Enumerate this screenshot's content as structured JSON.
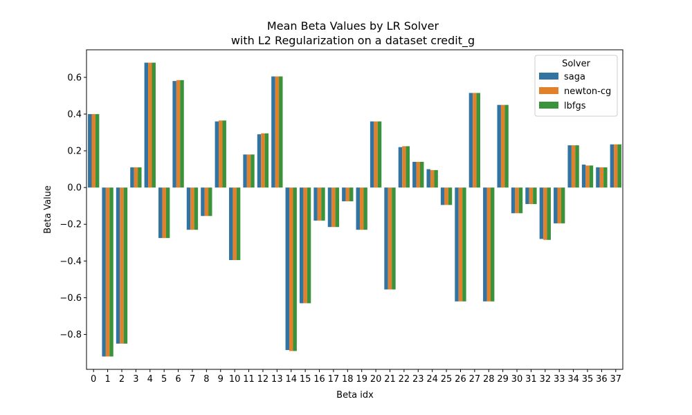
{
  "chart_data": {
    "type": "bar",
    "title": "Mean Beta Values by LR Solver",
    "subtitle": "with L2 Regularization on a dataset credit_g",
    "xlabel": "Beta idx",
    "ylabel": "Beta Value",
    "ylim": [
      -0.99,
      0.75
    ],
    "yticks": [
      -0.8,
      -0.6,
      -0.4,
      -0.2,
      0.0,
      0.2,
      0.4,
      0.6
    ],
    "ytick_labels": [
      "−0.8",
      "−0.6",
      "−0.4",
      "−0.2",
      "0.0",
      "0.2",
      "0.4",
      "0.6"
    ],
    "grid": false,
    "legend": {
      "title": "Solver",
      "position": "top-right"
    },
    "categories": [
      "0",
      "1",
      "2",
      "3",
      "4",
      "5",
      "6",
      "7",
      "8",
      "9",
      "10",
      "11",
      "12",
      "13",
      "14",
      "15",
      "16",
      "17",
      "18",
      "19",
      "20",
      "21",
      "22",
      "23",
      "24",
      "25",
      "26",
      "27",
      "28",
      "29",
      "30",
      "31",
      "32",
      "33",
      "34",
      "35",
      "36",
      "37"
    ],
    "series": [
      {
        "name": "saga",
        "color": "#3274a1",
        "values": [
          0.4,
          -0.92,
          -0.85,
          0.11,
          0.68,
          -0.275,
          0.58,
          -0.23,
          -0.155,
          0.36,
          -0.395,
          0.18,
          0.29,
          0.605,
          -0.885,
          -0.63,
          -0.18,
          -0.215,
          -0.075,
          -0.23,
          0.36,
          -0.555,
          0.22,
          0.14,
          0.1,
          -0.095,
          -0.62,
          0.515,
          -0.62,
          0.45,
          -0.14,
          -0.09,
          -0.28,
          -0.195,
          0.23,
          0.125,
          0.11,
          0.235
        ]
      },
      {
        "name": "newton-cg",
        "color": "#e1812c",
        "values": [
          0.4,
          -0.92,
          -0.85,
          0.11,
          0.68,
          -0.275,
          0.585,
          -0.23,
          -0.155,
          0.365,
          -0.395,
          0.18,
          0.295,
          0.605,
          -0.89,
          -0.63,
          -0.18,
          -0.215,
          -0.075,
          -0.23,
          0.36,
          -0.555,
          0.225,
          0.14,
          0.095,
          -0.095,
          -0.62,
          0.515,
          -0.62,
          0.45,
          -0.14,
          -0.09,
          -0.285,
          -0.195,
          0.23,
          0.12,
          0.11,
          0.235
        ]
      },
      {
        "name": "lbfgs",
        "color": "#3a923a",
        "values": [
          0.4,
          -0.92,
          -0.85,
          0.11,
          0.68,
          -0.275,
          0.585,
          -0.23,
          -0.155,
          0.365,
          -0.395,
          0.18,
          0.295,
          0.605,
          -0.89,
          -0.63,
          -0.18,
          -0.215,
          -0.075,
          -0.23,
          0.36,
          -0.555,
          0.225,
          0.14,
          0.095,
          -0.095,
          -0.62,
          0.515,
          -0.62,
          0.45,
          -0.14,
          -0.09,
          -0.285,
          -0.195,
          0.23,
          0.12,
          0.11,
          0.235
        ]
      }
    ]
  }
}
